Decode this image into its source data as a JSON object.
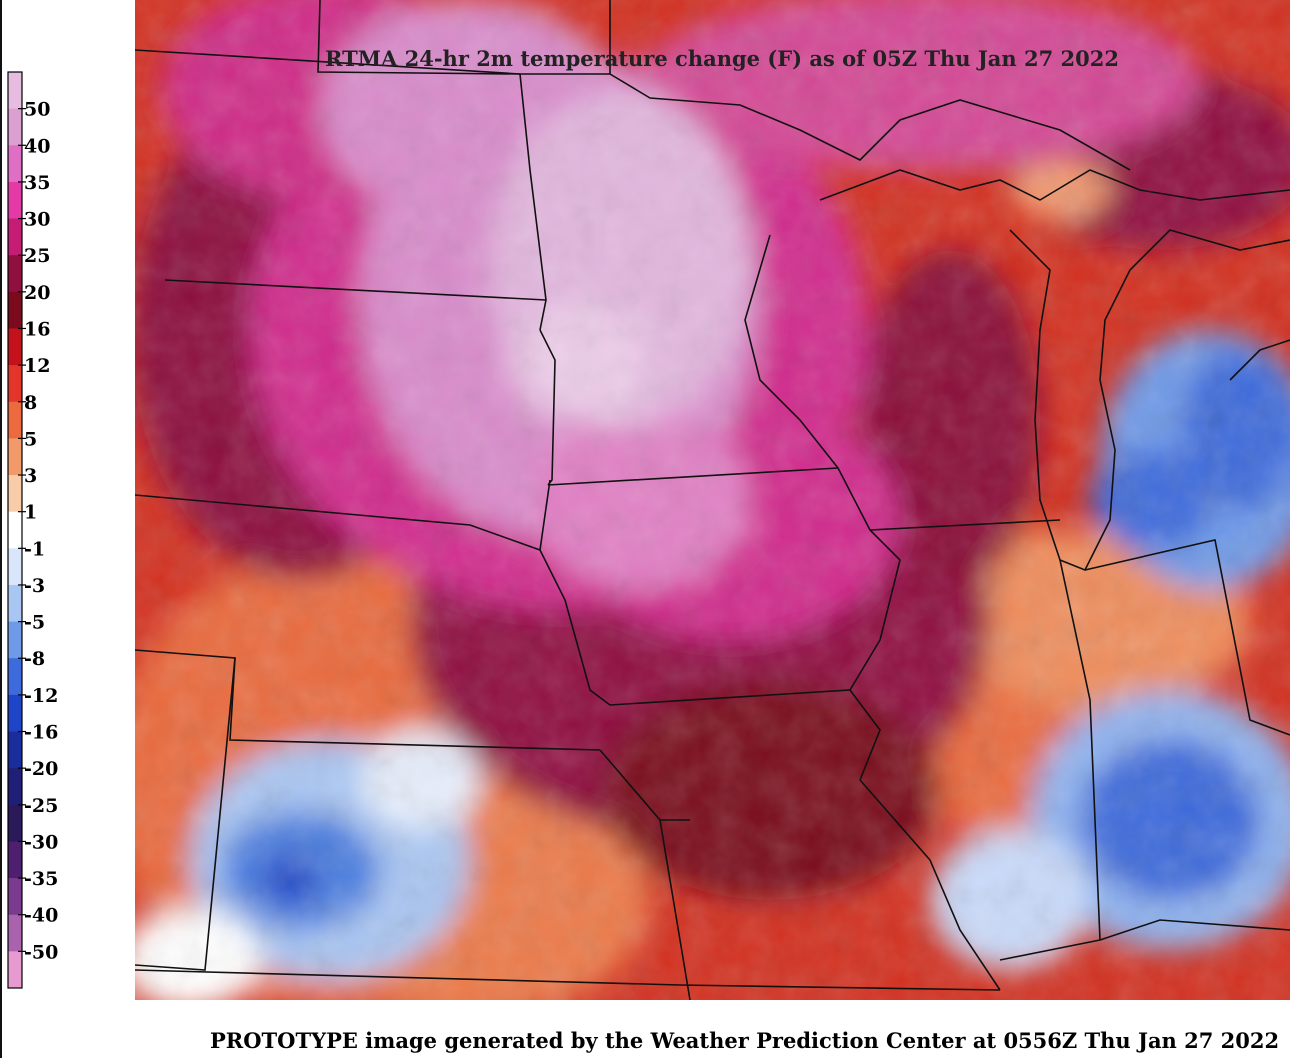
{
  "map": {
    "title": "RTMA 24-hr 2m temperature change (F) as of 05Z Thu Jan 27 2022",
    "footer": "PROTOTYPE image generated by the Weather Prediction Center at 0556Z Thu Jan 27 2022",
    "units": "F"
  },
  "legend": {
    "labels": [
      "50",
      "40",
      "35",
      "30",
      "25",
      "20",
      "16",
      "12",
      "8",
      "5",
      "3",
      "1",
      "-1",
      "-3",
      "-5",
      "-8",
      "-12",
      "-16",
      "-20",
      "-25",
      "-30",
      "-35",
      "-40",
      "-50"
    ],
    "colors": [
      "#e6bde0",
      "#dc9fd2",
      "#df6fc4",
      "#e43aa8",
      "#c51c76",
      "#8f0f3e",
      "#7a0a1c",
      "#c4121c",
      "#e2362a",
      "#ec6a3e",
      "#f39a6a",
      "#f8cca8",
      "#ffffff",
      "#d9e5fb",
      "#a9c6f3",
      "#6e9ae8",
      "#3d6bdb",
      "#1e44c8",
      "#1a2d9c",
      "#1f1f78",
      "#2a1a5a",
      "#4d1f6e",
      "#7a3b8f",
      "#a862ae",
      "#e69ad0"
    ]
  }
}
